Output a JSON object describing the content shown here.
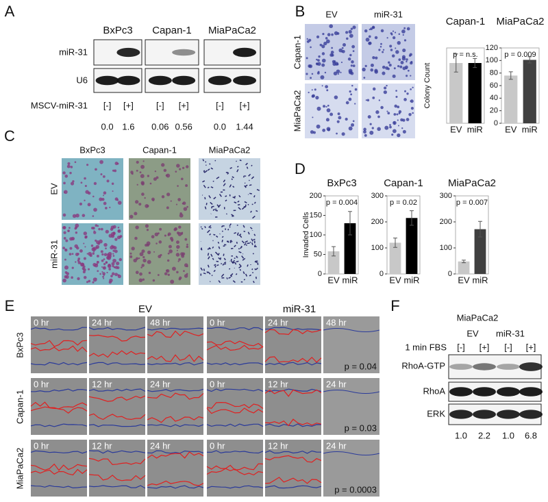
{
  "panel_a": {
    "label": "A",
    "columns": [
      "BxPc3",
      "Capan-1",
      "MiaPaCa2"
    ],
    "rows": [
      "miR-31",
      "U6"
    ],
    "condition": "MSCV-miR-31",
    "lanes": [
      "[-]",
      "[+]",
      "[-]",
      "[+]",
      "[-]",
      "[+]"
    ],
    "quantification": [
      "0.0",
      "1.6",
      "0.06",
      "0.56",
      "0.0",
      "1.44"
    ]
  },
  "panel_b": {
    "label": "B",
    "columns": [
      "EV",
      "miR-31"
    ],
    "rows": [
      "Capan-1",
      "MiaPaCa2"
    ]
  },
  "panel_c": {
    "label": "C",
    "columns": [
      "BxPc3",
      "Capan-1",
      "MiaPaCa2"
    ],
    "rows": [
      "EV",
      "miR-31"
    ]
  },
  "panel_d": {
    "label": "D"
  },
  "panel_e": {
    "label": "E",
    "groups": [
      "EV",
      "miR-31"
    ],
    "rows": [
      {
        "name": "BxPc3",
        "times": [
          "0 hr",
          "24 hr",
          "48 hr",
          "0 hr",
          "24 hr",
          "48 hr"
        ],
        "p": "p = 0.04"
      },
      {
        "name": "Capan-1",
        "times": [
          "0 hr",
          "12 hr",
          "24 hr",
          "0 hr",
          "12 hr",
          "24 hr"
        ],
        "p": "p = 0.03"
      },
      {
        "name": "MiaPaCa2",
        "times": [
          "0 hr",
          "12 hr",
          "24 hr",
          "0 hr",
          "12 hr",
          "24 hr"
        ],
        "p": "p = 0.0003"
      }
    ]
  },
  "panel_f": {
    "label": "F",
    "cell_line": "MiaPaCa2",
    "groups": [
      "EV",
      "miR-31"
    ],
    "condition": "1 min FBS",
    "lanes": [
      "[-]",
      "[+]",
      "[-]",
      "[+]"
    ],
    "rows": [
      "RhoA-GTP",
      "RhoA",
      "ERK"
    ],
    "quantification": [
      "1.0",
      "2.2",
      "1.0",
      "6.8"
    ]
  },
  "chart_data": [
    {
      "type": "bar",
      "title": "Capan-1",
      "subtitle": "p = n.s.",
      "y_label": "Colony Count",
      "categories": [
        "EV",
        "miR"
      ],
      "values": [
        200,
        200
      ],
      "errors": [
        30,
        15
      ],
      "colors": [
        "#c8c8c8",
        "#000000"
      ],
      "ylim": [
        0,
        250
      ]
    },
    {
      "type": "bar",
      "title": "MiaPaCa2",
      "subtitle": "p = 0.009",
      "categories": [
        "EV",
        "miR"
      ],
      "values": [
        76,
        101
      ],
      "errors": [
        6,
        5
      ],
      "colors": [
        "#c8c8c8",
        "#404040"
      ],
      "ylim": [
        0,
        120
      ],
      "yticks": [
        0,
        20,
        40,
        60,
        80,
        100,
        120
      ]
    },
    {
      "type": "bar",
      "title": "BxPc3",
      "subtitle": "p = 0.004",
      "y_label": "Invaded Cells",
      "categories": [
        "EV",
        "miR"
      ],
      "values": [
        58,
        130
      ],
      "errors": [
        12,
        30
      ],
      "colors": [
        "#c8c8c8",
        "#000000"
      ],
      "ylim": [
        0,
        200
      ],
      "yticks": [
        0,
        50,
        100,
        150,
        200
      ]
    },
    {
      "type": "bar",
      "title": "Capan-1",
      "subtitle": "p = 0.02",
      "categories": [
        "EV",
        "miR"
      ],
      "values": [
        120,
        215
      ],
      "errors": [
        18,
        28
      ],
      "colors": [
        "#c8c8c8",
        "#000000"
      ],
      "ylim": [
        0,
        300
      ],
      "yticks": [
        0,
        100,
        200,
        300
      ]
    },
    {
      "type": "bar",
      "title": "MiaPaCa2",
      "subtitle": "p = 0.007",
      "categories": [
        "EV",
        "miR"
      ],
      "values": [
        48,
        172
      ],
      "errors": [
        5,
        30
      ],
      "colors": [
        "#c8c8c8",
        "#404040"
      ],
      "ylim": [
        0,
        300
      ],
      "yticks": [
        0,
        100,
        200,
        300
      ]
    }
  ]
}
